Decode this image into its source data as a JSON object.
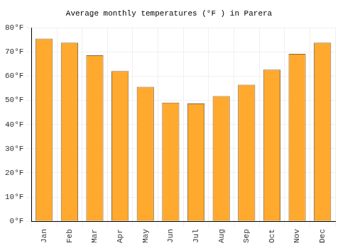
{
  "chart_data": {
    "type": "bar",
    "title": "Average monthly temperatures (°F ) in Parera",
    "categories": [
      "Jan",
      "Feb",
      "Mar",
      "Apr",
      "May",
      "Jun",
      "Jul",
      "Aug",
      "Sep",
      "Oct",
      "Nov",
      "Dec"
    ],
    "values": [
      75.5,
      73.8,
      68.6,
      62.1,
      55.6,
      49.1,
      48.7,
      51.8,
      56.5,
      62.7,
      69.2,
      73.8
    ],
    "color": "#ffa92e",
    "ylim": [
      0,
      80
    ],
    "yticks": [
      {
        "value": 0,
        "label": "0°F"
      },
      {
        "value": 10,
        "label": "10°F"
      },
      {
        "value": 20,
        "label": "20°F"
      },
      {
        "value": 30,
        "label": "30°F"
      },
      {
        "value": 40,
        "label": "40°F"
      },
      {
        "value": 50,
        "label": "50°F"
      },
      {
        "value": 60,
        "label": "60°F"
      },
      {
        "value": 70,
        "label": "70°F"
      },
      {
        "value": 80,
        "label": "80°F"
      }
    ],
    "grid": true
  }
}
